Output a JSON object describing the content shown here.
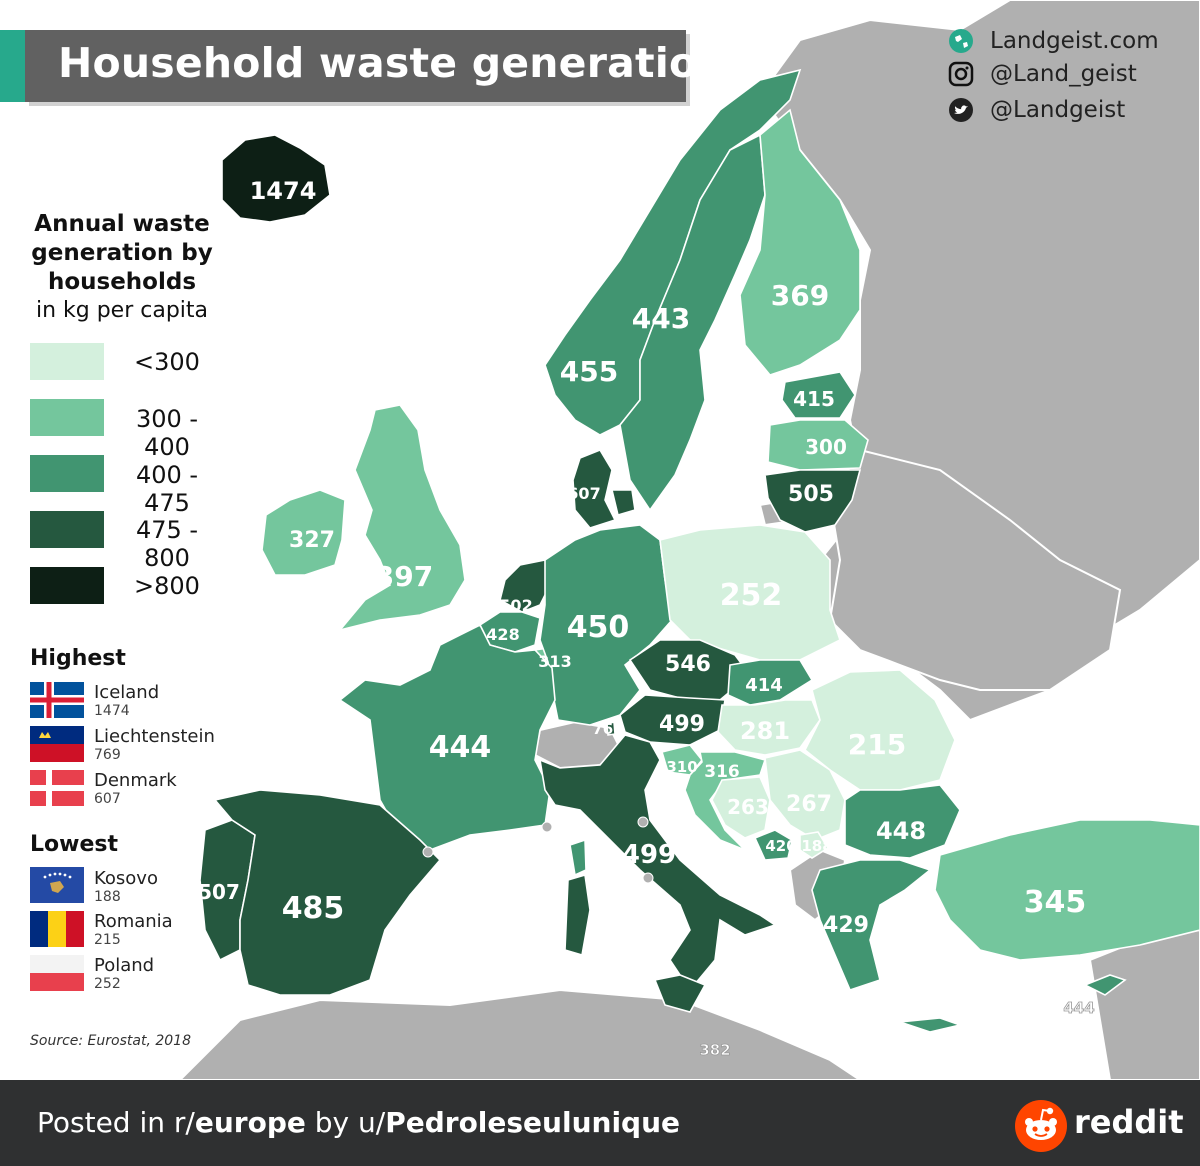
{
  "title": "Household waste generation",
  "social": [
    {
      "icon": "globe-icon",
      "text": "Landgeist.com"
    },
    {
      "icon": "instagram-icon",
      "text": "@Land_geist"
    },
    {
      "icon": "twitter-icon",
      "text": "@Landgeist"
    }
  ],
  "legend": {
    "title": "Annual waste generation by households",
    "subtitle": "in kg per capita",
    "bins": [
      {
        "label": "<300",
        "color": "#d4f0dd"
      },
      {
        "label": "300 - 400",
        "color": "#74c69d"
      },
      {
        "label": "400 - 475",
        "color": "#419571"
      },
      {
        "label": "475 - 800",
        "color": "#25583f"
      },
      {
        "label": ">800",
        "color": "#0d1f15"
      }
    ]
  },
  "highest": {
    "heading": "Highest",
    "items": [
      {
        "name": "Iceland",
        "value": "1474",
        "flag": "iceland-flag"
      },
      {
        "name": "Liechtenstein",
        "value": "769",
        "flag": "liechtenstein-flag"
      },
      {
        "name": "Denmark",
        "value": "607",
        "flag": "denmark-flag"
      }
    ]
  },
  "lowest": {
    "heading": "Lowest",
    "items": [
      {
        "name": "Kosovo",
        "value": "188",
        "flag": "kosovo-flag"
      },
      {
        "name": "Romania",
        "value": "215",
        "flag": "romania-flag"
      },
      {
        "name": "Poland",
        "value": "252",
        "flag": "poland-flag"
      }
    ]
  },
  "source": "Source: Eurostat, 2018",
  "map_values": {
    "iceland": "1474",
    "norway": "455",
    "sweden": "443",
    "finland": "369",
    "estonia": "415",
    "latvia": "300",
    "lithuania": "505",
    "denmark": "607",
    "ireland": "327",
    "uk": "397",
    "netherlands": "502",
    "belgium": "428",
    "luxembourg": "313",
    "germany": "450",
    "poland": "252",
    "czechia": "546",
    "slovakia": "414",
    "austria": "499",
    "liechtenstein": "769",
    "hungary": "281",
    "romania": "215",
    "slovenia": "310",
    "croatia": "316",
    "bosnia": "263",
    "serbia": "267",
    "montenegro": "420",
    "kosovo": "188",
    "bulgaria": "448",
    "france": "444",
    "portugal": "507",
    "spain": "485",
    "italy": "499",
    "greece": "429",
    "turkey": "345",
    "cyprus": "444",
    "malta": "382"
  },
  "footer": {
    "prefix": "Posted in r/",
    "sub": "europe",
    "mid": " by u/",
    "user": "Pedroleseulunique",
    "brand": "reddit"
  }
}
